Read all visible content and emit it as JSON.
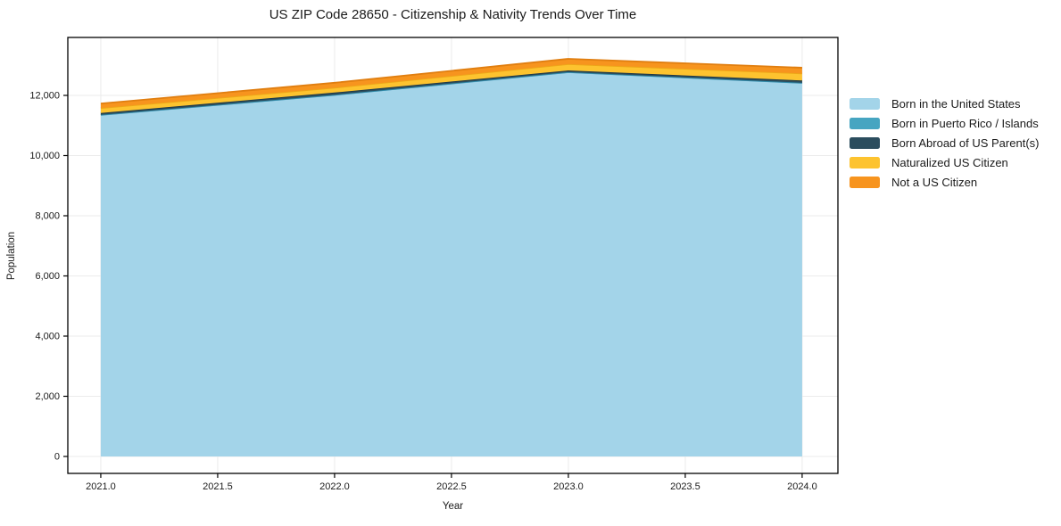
{
  "chart_data": {
    "type": "area",
    "stacked": true,
    "title": "US ZIP Code 28650 - Citizenship & Nativity Trends Over Time",
    "xlabel": "Year",
    "ylabel": "Population",
    "x": [
      2021,
      2022,
      2023,
      2024
    ],
    "series": [
      {
        "name": "Born in the United States",
        "fill": "#a3d4e9",
        "edge": "#68aed0",
        "values": [
          11350,
          12015,
          12770,
          12415
        ]
      },
      {
        "name": "Born in Puerto Rico / Islands",
        "fill": "#46a5c1",
        "edge": "#2f8aa8",
        "values": [
          5,
          5,
          5,
          5
        ]
      },
      {
        "name": "Born Abroad of US Parent(s)",
        "fill": "#2b4d5e",
        "edge": "#1f3947",
        "values": [
          60,
          75,
          55,
          75
        ]
      },
      {
        "name": "Naturalized US Citizen",
        "fill": "#fdc32f",
        "edge": "#eda718",
        "values": [
          165,
          160,
          210,
          235
        ]
      },
      {
        "name": "Not a US Citizen",
        "fill": "#f7941e",
        "edge": "#e07e10",
        "values": [
          150,
          165,
          175,
          190
        ]
      }
    ],
    "xlim": [
      2020.859,
      2024.153
    ],
    "ylim": [
      -563,
      13926
    ],
    "xtick_values": [
      2021.0,
      2021.5,
      2022.0,
      2022.5,
      2023.0,
      2023.5,
      2024.0
    ],
    "xtick_labels": [
      "2021.0",
      "2021.5",
      "2022.0",
      "2022.5",
      "2023.0",
      "2023.5",
      "2024.0"
    ],
    "ytick_values": [
      0,
      2000,
      4000,
      6000,
      8000,
      10000,
      12000
    ],
    "ytick_labels": [
      "0",
      "2,000",
      "4,000",
      "6,000",
      "8,000",
      "10,000",
      "12,000"
    ],
    "grid": true,
    "grid_color": "#ebebeb",
    "axis_color": "#000000",
    "background": "#ffffff",
    "legend_position": "right"
  }
}
